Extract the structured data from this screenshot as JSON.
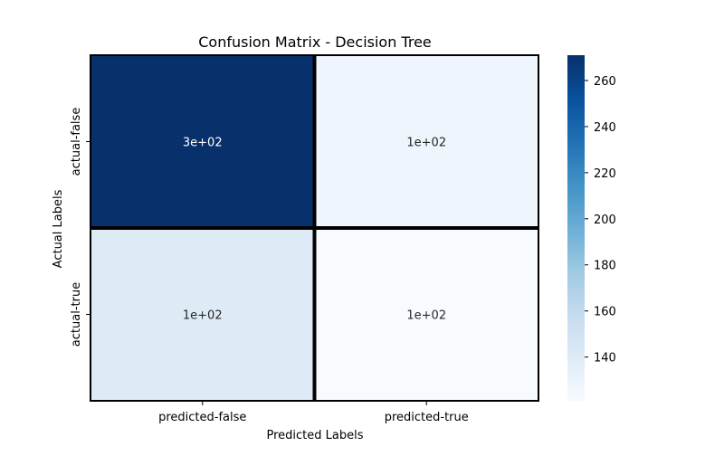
{
  "chart_data": {
    "type": "heatmap",
    "title": "Confusion Matrix - Decision Tree",
    "xlabel": "Predicted Labels",
    "ylabel": "Actual Labels",
    "x_categories": [
      "predicted-false",
      "predicted-true"
    ],
    "y_categories": [
      "actual-false",
      "actual-true"
    ],
    "values": [
      [
        271,
        128
      ],
      [
        140,
        121
      ]
    ],
    "annotations": [
      [
        "3e+02",
        "1e+02"
      ],
      [
        "1e+02",
        "1e+02"
      ]
    ],
    "colormap": "Blues",
    "colorbar": {
      "vmin": 121,
      "vmax": 271,
      "ticks": [
        "140",
        "160",
        "180",
        "200",
        "220",
        "240",
        "260"
      ]
    },
    "colors": {
      "cell_border": "#000000",
      "dark_text": "#262626",
      "light_text": "#ffffff"
    }
  }
}
